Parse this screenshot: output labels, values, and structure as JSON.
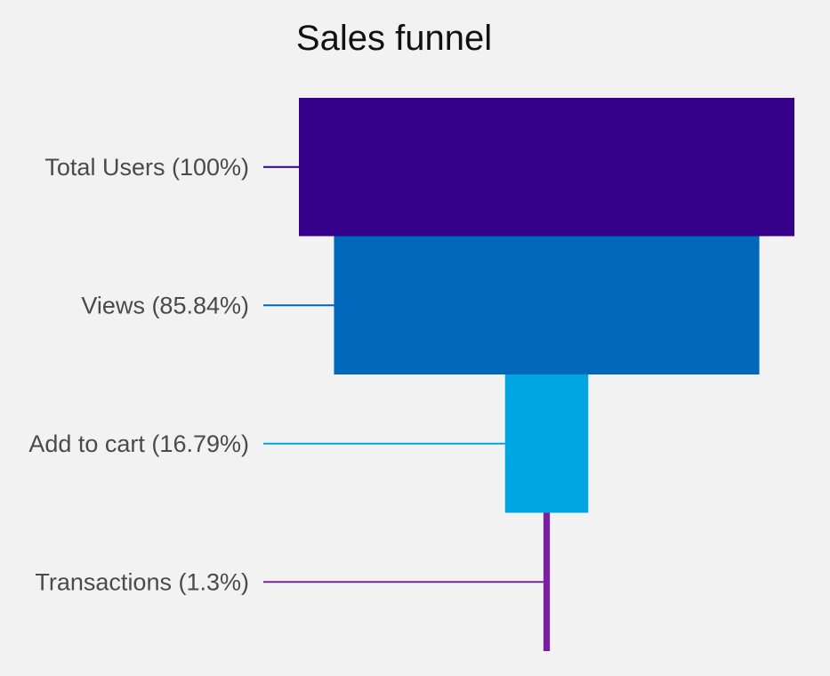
{
  "chart_data": {
    "type": "funnel",
    "title": "Sales funnel",
    "stages": [
      {
        "name": "Total Users",
        "percent": 100,
        "label": "Total Users (100%)",
        "color": "#35008a"
      },
      {
        "name": "Views",
        "percent": 85.84,
        "label": "Views (85.84%)",
        "color": "#0068bb"
      },
      {
        "name": "Add to cart",
        "percent": 16.79,
        "label": "Add to cart (16.79%)",
        "color": "#00a6e2"
      },
      {
        "name": "Transactions",
        "percent": 1.3,
        "label": "Transactions (1.3%)",
        "color": "#7a1fa2"
      }
    ],
    "xlabel": "",
    "ylabel": ""
  }
}
